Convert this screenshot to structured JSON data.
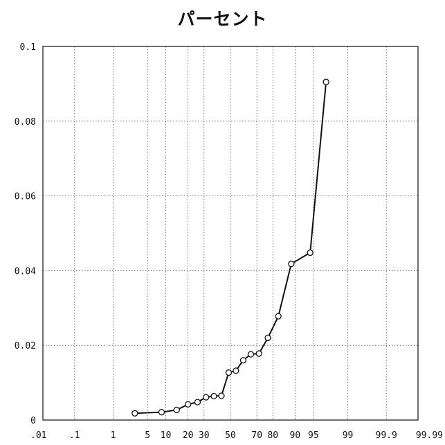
{
  "chart_data": {
    "type": "line",
    "title": "パーセント",
    "xlabel": "",
    "ylabel": "",
    "x_scale": "normal-probability",
    "x_ticks": [
      0.01,
      0.1,
      1,
      5,
      10,
      20,
      30,
      50,
      70,
      80,
      90,
      95,
      99,
      99.9,
      99.99
    ],
    "x_tick_labels": [
      ".01",
      ".1",
      "1",
      "5",
      "10",
      "20",
      "30",
      "50",
      "70",
      "80",
      "90",
      "95",
      "99",
      "99.9",
      "99.99"
    ],
    "ylim": [
      0,
      0.1
    ],
    "y_ticks": [
      0,
      0.02,
      0.04,
      0.06,
      0.08,
      0.1
    ],
    "y_tick_labels": [
      "0",
      "0.02",
      "0.04",
      "0.06",
      "0.08",
      "0.1"
    ],
    "grid": true,
    "series": [
      {
        "marker": "circle",
        "points": [
          {
            "x": 2.9,
            "y": 0.0018
          },
          {
            "x": 8.6,
            "y": 0.0021
          },
          {
            "x": 14.3,
            "y": 0.0027
          },
          {
            "x": 20,
            "y": 0.0042
          },
          {
            "x": 25.7,
            "y": 0.0048
          },
          {
            "x": 31.4,
            "y": 0.0061
          },
          {
            "x": 37.1,
            "y": 0.0064
          },
          {
            "x": 42.9,
            "y": 0.0065
          },
          {
            "x": 48.6,
            "y": 0.0127
          },
          {
            "x": 54.3,
            "y": 0.0132
          },
          {
            "x": 60,
            "y": 0.016
          },
          {
            "x": 65.7,
            "y": 0.0176
          },
          {
            "x": 71.4,
            "y": 0.0178
          },
          {
            "x": 77.1,
            "y": 0.022
          },
          {
            "x": 82.9,
            "y": 0.0278
          },
          {
            "x": 88.6,
            "y": 0.0418
          },
          {
            "x": 94.3,
            "y": 0.0448
          },
          {
            "x": 97.1,
            "y": 0.0905
          }
        ]
      }
    ]
  }
}
